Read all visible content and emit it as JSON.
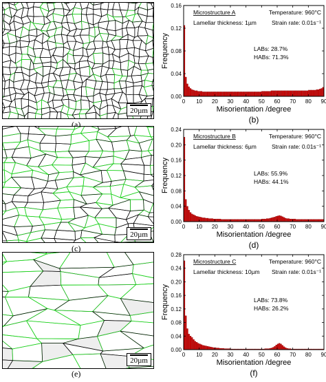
{
  "panel_labels": [
    "(a)",
    "(b)",
    "(c)",
    "(d)",
    "(e)",
    "(f)"
  ],
  "scale_bar_text": "20µm",
  "colors": {
    "hab_boundary": "#000000",
    "lab_boundary": "#1fd11f",
    "bar_fill": "#cc0000",
    "bar_edge": "#6e0000"
  },
  "chart_data": [
    {
      "type": "bar",
      "panel": "(b)",
      "title": "Microstructure A",
      "lamellar": "Lamellar thickness: 1µm",
      "temperature": "Temperature: 960°C",
      "strain_rate": "Strain rate: 0.01s⁻¹",
      "labs": "LABs: 28.7%",
      "habs": "HABs: 71.3%",
      "xlabel": "Misorientation /degree",
      "ylabel": "Frequency",
      "xlim": [
        0,
        90
      ],
      "ylim": [
        0,
        0.16
      ],
      "xticks": [
        0,
        10,
        20,
        30,
        40,
        50,
        60,
        70,
        80,
        90
      ],
      "yticks": [
        0.0,
        0.04,
        0.08,
        0.12,
        0.16
      ],
      "ytick_labels": [
        "0.00",
        "0.04",
        "0.08",
        "0.12",
        "0.16"
      ],
      "bin_width": 1,
      "values": [
        0.125,
        0.034,
        0.022,
        0.017,
        0.014,
        0.012,
        0.011,
        0.01,
        0.01,
        0.009,
        0.009,
        0.009,
        0.008,
        0.008,
        0.008,
        0.008,
        0.008,
        0.008,
        0.008,
        0.008,
        0.008,
        0.008,
        0.008,
        0.008,
        0.008,
        0.008,
        0.008,
        0.008,
        0.008,
        0.008,
        0.008,
        0.008,
        0.008,
        0.008,
        0.008,
        0.008,
        0.008,
        0.008,
        0.008,
        0.008,
        0.008,
        0.008,
        0.008,
        0.008,
        0.008,
        0.008,
        0.008,
        0.008,
        0.008,
        0.008,
        0.009,
        0.009,
        0.009,
        0.009,
        0.009,
        0.009,
        0.01,
        0.01,
        0.01,
        0.01,
        0.01,
        0.01,
        0.01,
        0.01,
        0.01,
        0.01,
        0.01,
        0.01,
        0.01,
        0.01,
        0.01,
        0.01,
        0.01,
        0.01,
        0.01,
        0.01,
        0.01,
        0.01,
        0.01,
        0.01,
        0.011,
        0.011,
        0.011,
        0.011,
        0.011,
        0.012,
        0.012,
        0.013,
        0.014,
        0.016
      ]
    },
    {
      "type": "bar",
      "panel": "(d)",
      "title": "Microstructure B",
      "lamellar": "Lamellar thickness: 6µm",
      "temperature": "Temperature: 960°C",
      "strain_rate": "Strain rate: 0.01s⁻¹",
      "labs": "LABs: 55.9%",
      "habs": "HABs: 44.1%",
      "xlabel": "Misorientation /degree",
      "ylabel": "Frequency",
      "xlim": [
        0,
        90
      ],
      "ylim": [
        0,
        0.24
      ],
      "xticks": [
        0,
        10,
        20,
        30,
        40,
        50,
        60,
        70,
        80,
        90
      ],
      "yticks": [
        0.0,
        0.04,
        0.08,
        0.12,
        0.16,
        0.2,
        0.24
      ],
      "ytick_labels": [
        "0.00",
        "0.04",
        "0.08",
        "0.12",
        "0.16",
        "0.20",
        "0.24"
      ],
      "bin_width": 1,
      "values": [
        0.22,
        0.058,
        0.04,
        0.03,
        0.024,
        0.02,
        0.018,
        0.016,
        0.014,
        0.013,
        0.012,
        0.011,
        0.01,
        0.01,
        0.009,
        0.009,
        0.008,
        0.008,
        0.008,
        0.007,
        0.007,
        0.007,
        0.007,
        0.007,
        0.006,
        0.006,
        0.006,
        0.006,
        0.006,
        0.006,
        0.006,
        0.006,
        0.006,
        0.006,
        0.006,
        0.006,
        0.006,
        0.006,
        0.006,
        0.006,
        0.006,
        0.006,
        0.006,
        0.006,
        0.006,
        0.006,
        0.006,
        0.006,
        0.006,
        0.006,
        0.007,
        0.007,
        0.007,
        0.008,
        0.008,
        0.009,
        0.01,
        0.011,
        0.012,
        0.014,
        0.015,
        0.016,
        0.015,
        0.013,
        0.011,
        0.009,
        0.008,
        0.008,
        0.007,
        0.007,
        0.007,
        0.007,
        0.006,
        0.006,
        0.006,
        0.006,
        0.006,
        0.006,
        0.006,
        0.006,
        0.006,
        0.006,
        0.006,
        0.006,
        0.006,
        0.006,
        0.006,
        0.006,
        0.006,
        0.006
      ]
    },
    {
      "type": "bar",
      "panel": "(f)",
      "title": "Microstructure C",
      "lamellar": "Lamellar thickness: 10µm",
      "temperature": "Temperature: 960°C",
      "strain_rate": "Strain rate: 0.01s⁻¹",
      "labs": "LABs: 73.8%",
      "habs": "HABs: 26.2%",
      "xlabel": "Misorientation /degree",
      "ylabel": "Frequency",
      "xlim": [
        0,
        90
      ],
      "ylim": [
        0,
        0.28
      ],
      "xticks": [
        0,
        10,
        20,
        30,
        40,
        50,
        60,
        70,
        80,
        90
      ],
      "yticks": [
        0.0,
        0.04,
        0.08,
        0.12,
        0.16,
        0.2,
        0.24,
        0.28
      ],
      "ytick_labels": [
        "0.00",
        "0.04",
        "0.08",
        "0.12",
        "0.16",
        "0.20",
        "0.24",
        "0.28"
      ],
      "bin_width": 1,
      "values": [
        0.262,
        0.1,
        0.062,
        0.046,
        0.04,
        0.036,
        0.03,
        0.025,
        0.022,
        0.019,
        0.017,
        0.015,
        0.013,
        0.012,
        0.011,
        0.01,
        0.009,
        0.008,
        0.007,
        0.006,
        0.006,
        0.005,
        0.005,
        0.004,
        0.004,
        0.004,
        0.003,
        0.003,
        0.003,
        0.003,
        0.002,
        0.002,
        0.002,
        0.002,
        0.002,
        0.002,
        0.002,
        0.002,
        0.002,
        0.002,
        0.002,
        0.002,
        0.002,
        0.002,
        0.002,
        0.002,
        0.002,
        0.002,
        0.002,
        0.002,
        0.002,
        0.002,
        0.003,
        0.003,
        0.003,
        0.004,
        0.005,
        0.007,
        0.01,
        0.014,
        0.017,
        0.019,
        0.017,
        0.013,
        0.009,
        0.006,
        0.004,
        0.003,
        0.003,
        0.002,
        0.002,
        0.002,
        0.002,
        0.002,
        0.002,
        0.002,
        0.002,
        0.002,
        0.002,
        0.002,
        0.002,
        0.002,
        0.002,
        0.002,
        0.002,
        0.002,
        0.002,
        0.002,
        0.002,
        0.002
      ]
    }
  ]
}
